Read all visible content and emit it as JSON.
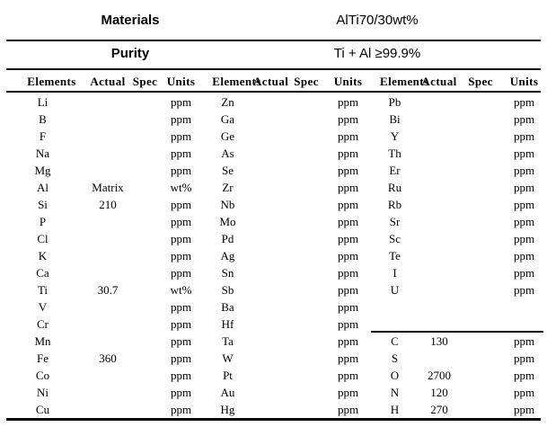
{
  "header": {
    "materials_label": "Materials",
    "materials_value": "AlTi70/30wt%",
    "purity_label": "Purity",
    "purity_value": "Ti + Al ≥99.9%"
  },
  "table": {
    "column_headers": [
      "Elements",
      "Actual",
      "Spec",
      "Units",
      "Elements",
      "Actual",
      "Spec",
      "Units",
      "Elements",
      "Actual",
      "Spec",
      "Units"
    ],
    "rows": [
      [
        "Li",
        "",
        "",
        "ppm",
        "Zn",
        "",
        "",
        "ppm",
        "Pb",
        "",
        "",
        "ppm"
      ],
      [
        "B",
        "",
        "",
        "ppm",
        "Ga",
        "",
        "",
        "ppm",
        "Bi",
        "",
        "",
        "ppm"
      ],
      [
        "F",
        "",
        "",
        "ppm",
        "Ge",
        "",
        "",
        "ppm",
        "Y",
        "",
        "",
        "ppm"
      ],
      [
        "Na",
        "",
        "",
        "ppm",
        "As",
        "",
        "",
        "ppm",
        "Th",
        "",
        "",
        "ppm"
      ],
      [
        "Mg",
        "",
        "",
        "ppm",
        "Se",
        "",
        "",
        "ppm",
        "Er",
        "",
        "",
        "ppm"
      ],
      [
        "Al",
        "Matrix",
        "",
        "wt%",
        "Zr",
        "",
        "",
        "ppm",
        "Ru",
        "",
        "",
        "ppm"
      ],
      [
        "Si",
        "210",
        "",
        "ppm",
        "Nb",
        "",
        "",
        "ppm",
        "Rb",
        "",
        "",
        "ppm"
      ],
      [
        "P",
        "",
        "",
        "ppm",
        "Mo",
        "",
        "",
        "ppm",
        "Sr",
        "",
        "",
        "ppm"
      ],
      [
        "Cl",
        "",
        "",
        "ppm",
        "Pd",
        "",
        "",
        "ppm",
        "Sc",
        "",
        "",
        "ppm"
      ],
      [
        "K",
        "",
        "",
        "ppm",
        "Ag",
        "",
        "",
        "ppm",
        "Te",
        "",
        "",
        "ppm"
      ],
      [
        "Ca",
        "",
        "",
        "ppm",
        "Sn",
        "",
        "",
        "ppm",
        "I",
        "",
        "",
        "ppm"
      ],
      [
        "Ti",
        "30.7",
        "",
        "wt%",
        "Sb",
        "",
        "",
        "ppm",
        "U",
        "",
        "",
        "ppm"
      ],
      [
        "V",
        "",
        "",
        "ppm",
        "Ba",
        "",
        "",
        "ppm",
        "",
        "",
        "",
        ""
      ],
      [
        "Cr",
        "",
        "",
        "ppm",
        "Hf",
        "",
        "",
        "ppm",
        "",
        "",
        "",
        ""
      ],
      [
        "Mn",
        "",
        "",
        "ppm",
        "Ta",
        "",
        "",
        "ppm",
        "C",
        "130",
        "",
        "ppm"
      ],
      [
        "Fe",
        "360",
        "",
        "ppm",
        "W",
        "",
        "",
        "ppm",
        "S",
        "",
        "",
        "ppm"
      ],
      [
        "Co",
        "",
        "",
        "ppm",
        "Pt",
        "",
        "",
        "ppm",
        "O",
        "2700",
        "",
        "ppm"
      ],
      [
        "Ni",
        "",
        "",
        "ppm",
        "Au",
        "",
        "",
        "ppm",
        "N",
        "120",
        "",
        "ppm"
      ],
      [
        "Cu",
        "",
        "",
        "ppm",
        "Hg",
        "",
        "",
        "ppm",
        "H",
        "270",
        "",
        "ppm"
      ]
    ]
  }
}
